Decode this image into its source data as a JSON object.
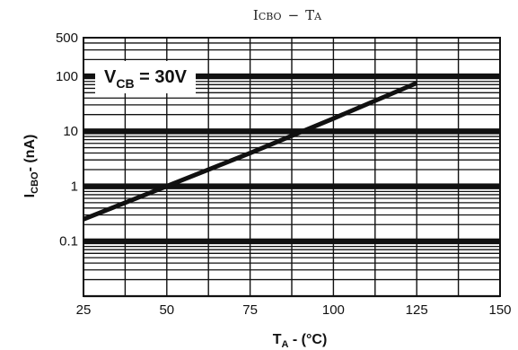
{
  "chart_data": {
    "type": "line",
    "title": "ICBO - TA",
    "xlabel": "TA - (°C)",
    "ylabel": "ICBO- (nA)",
    "x_scale": "linear",
    "y_scale": "log",
    "xlim": [
      25,
      150
    ],
    "ylim": [
      0.01,
      500
    ],
    "x_ticks": [
      25,
      50,
      75,
      100,
      125,
      150
    ],
    "x_tick_labels": [
      "25",
      "50",
      "75",
      "100",
      "125",
      "150"
    ],
    "y_ticks": [
      0.1,
      1,
      10,
      100,
      500
    ],
    "y_tick_labels": [
      "0.1",
      "1",
      "10",
      "100",
      "500"
    ],
    "grid": true,
    "annotation": "VCB = 30V",
    "series": [
      {
        "x": [
          25,
          50,
          75,
          100,
          125
        ],
        "y": [
          0.25,
          1,
          4,
          17,
          75
        ],
        "color": "#111111"
      }
    ]
  }
}
